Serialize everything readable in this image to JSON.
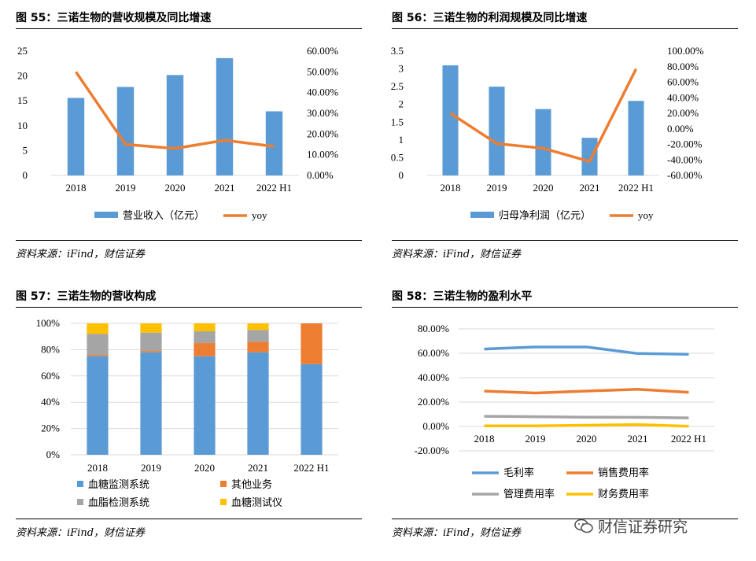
{
  "charts": [
    {
      "title": "图 55：三诺生物的营收规模及同比增速",
      "source": "资料来源：iFind，财信证券",
      "chart_data": {
        "type": "bar",
        "categories": [
          "2018",
          "2019",
          "2020",
          "2021",
          "2022 H1"
        ],
        "series": [
          {
            "name": "营业收入（亿元）",
            "kind": "bar",
            "axis": "left",
            "color": "#5B9BD5",
            "values": [
              15.6,
              17.8,
              20.2,
              23.6,
              12.9
            ]
          },
          {
            "name": "yoy",
            "kind": "line",
            "axis": "right",
            "color": "#ED7D31",
            "values": [
              0.5,
              0.15,
              0.13,
              0.17,
              0.14
            ]
          }
        ],
        "ylim": [
          0,
          25
        ],
        "y_ticks": [
          "0",
          "5",
          "10",
          "15",
          "20",
          "25"
        ],
        "y2lim": [
          0,
          0.6
        ],
        "y2_ticks": [
          "0.00%",
          "10.00%",
          "20.00%",
          "30.00%",
          "40.00%",
          "50.00%",
          "60.00%"
        ],
        "grid": false,
        "legend": "bottom"
      }
    },
    {
      "title": "图 56：三诺生物的利润规模及同比增速",
      "source": "资料来源：iFind，财信证券",
      "chart_data": {
        "type": "bar",
        "categories": [
          "2018",
          "2019",
          "2020",
          "2021",
          "2022 H1"
        ],
        "series": [
          {
            "name": "归母净利润（亿元）",
            "kind": "bar",
            "axis": "left",
            "color": "#5B9BD5",
            "values": [
              3.1,
              2.5,
              1.87,
              1.06,
              2.1
            ]
          },
          {
            "name": "yoy",
            "kind": "line",
            "axis": "right",
            "color": "#ED7D31",
            "values": [
              0.2,
              -0.19,
              -0.25,
              -0.42,
              0.77
            ]
          }
        ],
        "ylim": [
          0,
          3.5
        ],
        "y_ticks": [
          "0",
          "0.5",
          "1",
          "1.5",
          "2",
          "2.5",
          "3",
          "3.5"
        ],
        "y2lim": [
          -0.6,
          1.0
        ],
        "y2_ticks": [
          "-60.00%",
          "-40.00%",
          "-20.00%",
          "0.00%",
          "20.00%",
          "40.00%",
          "60.00%",
          "80.00%",
          "100.00%"
        ],
        "grid": false,
        "legend": "bottom"
      }
    },
    {
      "title": "图 57：三诺生物的营收构成",
      "source": "资料来源：iFind，财信证券",
      "chart_data": {
        "type": "bar",
        "stacked": true,
        "categories": [
          "2018",
          "2019",
          "2020",
          "2021",
          "2022 H1"
        ],
        "series": [
          {
            "name": "血糖监测系统",
            "color": "#5B9BD5",
            "values": [
              0.75,
              0.78,
              0.75,
              0.78,
              0.69
            ]
          },
          {
            "name": "其他业务",
            "color": "#ED7D31",
            "values": [
              0.01,
              0.01,
              0.1,
              0.08,
              0.31
            ]
          },
          {
            "name": "血脂检测系统",
            "color": "#A5A5A5",
            "values": [
              0.16,
              0.14,
              0.09,
              0.09,
              0.0
            ]
          },
          {
            "name": "血糖测试仪",
            "color": "#FFC000",
            "values": [
              0.08,
              0.07,
              0.06,
              0.05,
              0.0
            ]
          }
        ],
        "ylim": [
          0,
          1
        ],
        "y_ticks": [
          "0%",
          "20%",
          "40%",
          "60%",
          "80%",
          "100%"
        ],
        "grid": true,
        "legend": "bottom"
      }
    },
    {
      "title": "图 58：三诺生物的盈利水平",
      "source": "资料来源：iFind，财信证券",
      "chart_data": {
        "type": "line",
        "categories": [
          "2018",
          "2019",
          "2020",
          "2021",
          "2022 H1"
        ],
        "series": [
          {
            "name": "毛利率",
            "color": "#5B9BD5",
            "values": [
              0.635,
              0.652,
              0.652,
              0.598,
              0.592
            ]
          },
          {
            "name": "销售费用率",
            "color": "#ED7D31",
            "values": [
              0.29,
              0.274,
              0.29,
              0.305,
              0.28
            ]
          },
          {
            "name": "管理费用率",
            "color": "#A5A5A5",
            "values": [
              0.083,
              0.08,
              0.076,
              0.075,
              0.07
            ]
          },
          {
            "name": "财务费用率",
            "color": "#FFC000",
            "values": [
              0.005,
              0.005,
              0.01,
              0.015,
              0.002
            ]
          }
        ],
        "ylim": [
          -0.2,
          0.8
        ],
        "y_ticks": [
          "-20.00%",
          "0.00%",
          "20.00%",
          "40.00%",
          "60.00%",
          "80.00%"
        ],
        "grid": true,
        "legend": "bottom"
      }
    }
  ],
  "watermark": {
    "text": "财信证券研究",
    "icon": "wechat-icon"
  }
}
